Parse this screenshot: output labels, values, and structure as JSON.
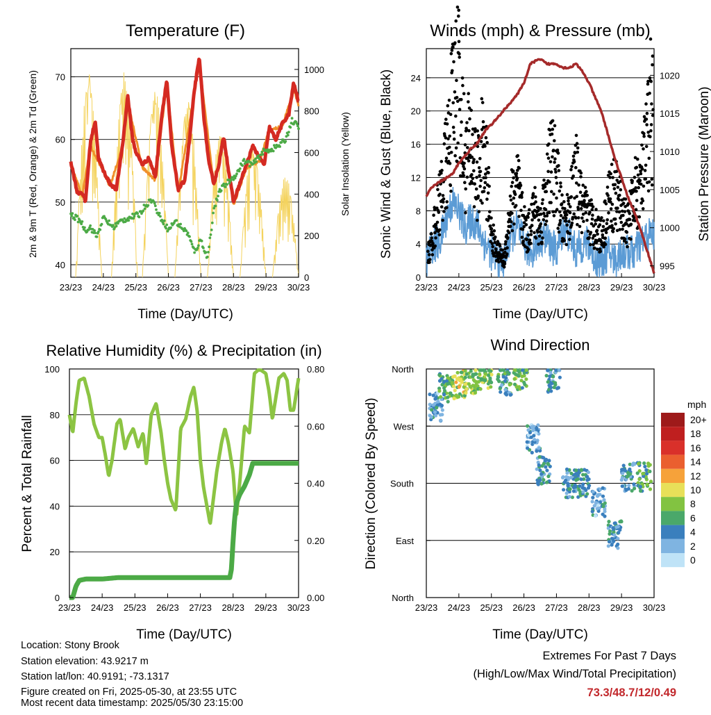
{
  "chart_data": [
    {
      "type": "line",
      "title": "Temperature (F)",
      "xlabel": "Time (Day/UTC)",
      "ylabel": "2m & 9m T (Red, Orange) & 2m Td (Green)",
      "y2label": "Solar Insolation (Yellow)",
      "x_ticks": [
        "23/23",
        "24/23",
        "25/23",
        "26/23",
        "27/23",
        "28/23",
        "29/23",
        "30/23"
      ],
      "xlim": [
        0,
        7
      ],
      "ylim": [
        38,
        74.5
      ],
      "y_ticks": [
        40,
        50,
        60,
        70
      ],
      "y2lim": [
        0,
        1100
      ],
      "y2_ticks": [
        0,
        200,
        400,
        600,
        800,
        1000
      ],
      "grid": true,
      "series": [
        {
          "color": "#d42a22",
          "x": [
            0,
            0.1,
            0.2,
            0.35,
            0.45,
            0.6,
            0.75,
            0.85,
            1.0,
            1.2,
            1.4,
            1.6,
            1.75,
            1.9,
            2.0,
            2.2,
            2.4,
            2.6,
            2.8,
            2.95,
            3.1,
            3.3,
            3.5,
            3.65,
            3.8,
            3.95,
            4.1,
            4.25,
            4.4,
            4.55,
            4.7,
            4.85,
            5.0,
            5.2,
            5.4,
            5.6,
            5.8,
            5.95,
            6.1,
            6.3,
            6.5,
            6.7,
            6.85,
            7.0
          ],
          "y": [
            56.5,
            54,
            51.5,
            51.5,
            50,
            59.5,
            63,
            57,
            55,
            53,
            52,
            59.5,
            67,
            60,
            58,
            56,
            57,
            54,
            64,
            69.5,
            59,
            52,
            53.5,
            60,
            68,
            73,
            63,
            56,
            53,
            56,
            60.5,
            55,
            50,
            53,
            56,
            59,
            57,
            56,
            62,
            60,
            62.5,
            64,
            69,
            66
          ]
        },
        {
          "color": "#f0902a",
          "x": [
            0,
            0.35,
            0.6,
            0.85,
            1.2,
            1.6,
            1.75,
            2.2,
            2.6,
            2.95,
            3.3,
            3.8,
            3.95,
            4.4,
            4.7,
            5.0,
            5.4,
            5.8,
            6.1,
            6.5,
            6.85,
            7.0
          ],
          "y": [
            56,
            51,
            59,
            56.5,
            52.5,
            59,
            66,
            55.5,
            53.5,
            69,
            51.5,
            67.5,
            72.5,
            52.5,
            60,
            49.5,
            55.5,
            56.5,
            61.5,
            62,
            68,
            65.5
          ]
        },
        {
          "color": "#4caa46",
          "x": [
            0,
            0.3,
            0.45,
            0.6,
            0.8,
            1.0,
            1.3,
            1.55,
            1.8,
            2.1,
            2.3,
            2.5,
            2.7,
            2.9,
            3.0,
            3.2,
            3.4,
            3.6,
            3.8,
            4.0,
            4.2,
            4.4,
            4.6,
            4.9,
            5.1,
            5.3,
            5.6,
            5.9,
            6.2,
            6.4,
            6.6,
            6.8,
            7.0
          ],
          "y": [
            48,
            47,
            45.5,
            46,
            44.5,
            47.5,
            46,
            47,
            47.5,
            48,
            49.5,
            50.5,
            48,
            46.5,
            45.5,
            47,
            46,
            45,
            42,
            44,
            41,
            49,
            52,
            53.5,
            54.5,
            56.5,
            56,
            58,
            58.5,
            59,
            60,
            63,
            62
          ]
        }
      ],
      "solar_peaks": [
        {
          "x": 0.55,
          "v": 980
        },
        {
          "x": 1.65,
          "v": 1010
        },
        {
          "x": 2.6,
          "v": 920
        },
        {
          "x": 3.6,
          "v": 880
        },
        {
          "x": 4.6,
          "v": 720
        },
        {
          "x": 5.6,
          "v": 650
        },
        {
          "x": 6.6,
          "v": 500
        }
      ]
    },
    {
      "type": "scatter",
      "title": "Winds (mph) & Pressure (mb)",
      "xlabel": "Time (Day/UTC)",
      "ylabel": "Sonic Wind & Gust (Blue, Black)",
      "y2label": "Station Pressure (Maroon)",
      "x_ticks": [
        "23/23",
        "24/23",
        "25/23",
        "26/23",
        "27/23",
        "28/23",
        "29/23",
        "30/23"
      ],
      "xlim": [
        0,
        7
      ],
      "ylim": [
        0,
        27.5
      ],
      "y_ticks": [
        0,
        4,
        8,
        12,
        16,
        20,
        24
      ],
      "y2lim": [
        993.5,
        1023.5
      ],
      "y2_ticks": [
        995,
        1000,
        1005,
        1010,
        1015,
        1020
      ],
      "grid": true,
      "pressure": {
        "color": "#a52a2a",
        "x": [
          0,
          0.1,
          0.25,
          0.4,
          0.6,
          0.8,
          1.0,
          1.2,
          1.4,
          1.55,
          1.7,
          1.85,
          2.0,
          2.3,
          2.6,
          2.8,
          3.0,
          3.2,
          3.4,
          3.55,
          3.7,
          3.85,
          4.0,
          4.2,
          4.4,
          4.6,
          4.8,
          5.0,
          5.2,
          5.4,
          5.6,
          5.8,
          6.0,
          6.2,
          6.4,
          6.6,
          6.75,
          6.9,
          7.0
        ],
        "y": [
          1004,
          1005,
          1005.5,
          1006,
          1006.5,
          1007,
          1008.5,
          1009.5,
          1010.5,
          1011,
          1012,
          1013,
          1013.5,
          1015,
          1016.5,
          1017.5,
          1019,
          1021.5,
          1022,
          1022,
          1021.5,
          1021.5,
          1021.5,
          1021,
          1021,
          1021.5,
          1020.5,
          1019,
          1017,
          1015,
          1012,
          1009,
          1006.5,
          1004,
          1002,
          999.5,
          997.5,
          995.5,
          994
        ]
      },
      "wind_series": [
        {
          "name": "wind",
          "color": "#5b9bd5",
          "x": [
            0,
            0.2,
            0.4,
            0.6,
            0.8,
            1.0,
            1.2,
            1.4,
            1.6,
            1.8,
            2.0,
            2.2,
            2.4,
            2.6,
            2.8,
            3.0,
            3.2,
            3.4,
            3.6,
            3.8,
            4.0,
            4.2,
            4.4,
            4.6,
            4.8,
            5.0,
            5.2,
            5.4,
            5.6,
            5.8,
            6.0,
            6.2,
            6.4,
            6.6,
            6.8,
            7.0
          ],
          "y": [
            2,
            4,
            4,
            7,
            9,
            8,
            6,
            7,
            6,
            4,
            3,
            2,
            2,
            5,
            6,
            4,
            3,
            4,
            5,
            4,
            3,
            6,
            5,
            3,
            4,
            4,
            2,
            2,
            3,
            2,
            3,
            3,
            3,
            4,
            5,
            5
          ]
        },
        {
          "name": "gust",
          "color": "#000000",
          "x": [
            0.1,
            0.3,
            0.5,
            0.7,
            0.8,
            0.9,
            1.0,
            1.1,
            1.2,
            1.35,
            1.5,
            1.6,
            1.7,
            1.85,
            2.0,
            2.2,
            2.4,
            2.6,
            2.8,
            2.95,
            3.1,
            3.3,
            3.5,
            3.7,
            3.85,
            4.0,
            4.2,
            4.4,
            4.6,
            4.8,
            5.0,
            5.2,
            5.4,
            5.6,
            5.8,
            6.0,
            6.2,
            6.4,
            6.6,
            6.8,
            6.9,
            7.0
          ],
          "y": [
            3,
            7,
            11,
            16,
            20,
            23,
            25,
            18,
            14,
            16,
            13,
            12,
            15,
            13,
            5,
            3,
            2,
            9,
            11,
            7,
            5,
            8,
            6,
            11,
            14,
            12,
            6,
            8,
            12,
            8,
            7,
            6,
            5,
            9,
            10,
            8,
            6,
            10,
            11,
            16,
            21,
            18
          ]
        }
      ]
    },
    {
      "type": "line",
      "title": "Relative Humidity (%) & Precipitation (in)",
      "xlabel": "Time (Day/UTC)",
      "ylabel": "Percent & Total Rainfall",
      "x_ticks": [
        "23/23",
        "24/23",
        "25/23",
        "26/23",
        "27/23",
        "28/23",
        "29/23",
        "30/23"
      ],
      "xlim": [
        0,
        7
      ],
      "ylim": [
        0,
        100
      ],
      "y_ticks": [
        0,
        20,
        40,
        60,
        80,
        100
      ],
      "y2lim": [
        0,
        0.8
      ],
      "y2_ticks": [
        "0.00",
        "0.20",
        "0.40",
        "0.60",
        "0.80"
      ],
      "grid": true,
      "series": [
        {
          "name": "rh",
          "color": "#8cc443",
          "x": [
            0,
            0.1,
            0.2,
            0.3,
            0.45,
            0.6,
            0.75,
            0.9,
            1.0,
            1.1,
            1.2,
            1.3,
            1.45,
            1.55,
            1.7,
            1.8,
            1.95,
            2.1,
            2.25,
            2.35,
            2.5,
            2.65,
            2.8,
            2.9,
            3.0,
            3.1,
            3.25,
            3.4,
            3.55,
            3.7,
            3.8,
            3.9,
            4.0,
            4.1,
            4.3,
            4.5,
            4.65,
            4.75,
            4.85,
            5.0,
            5.1,
            5.2,
            5.35,
            5.5,
            5.65,
            5.8,
            5.9,
            6.0,
            6.1,
            6.2,
            6.4,
            6.55,
            6.65,
            6.75,
            6.85,
            7.0
          ],
          "y": [
            80,
            72,
            85,
            95,
            96,
            88,
            76,
            70,
            70,
            62,
            53,
            60,
            76,
            78,
            65,
            70,
            74,
            66,
            72,
            58,
            80,
            85,
            72,
            60,
            50,
            43,
            38,
            74,
            78,
            88,
            92,
            82,
            60,
            48,
            32,
            55,
            68,
            74,
            68,
            55,
            35,
            50,
            75,
            72,
            98,
            100,
            99,
            98,
            90,
            78,
            96,
            98,
            95,
            82,
            82,
            96
          ]
        },
        {
          "name": "precip",
          "color": "#4caa46",
          "x": [
            0,
            0.1,
            0.15,
            0.2,
            0.3,
            0.5,
            1.0,
            1.5,
            2.0,
            3.0,
            4.0,
            4.5,
            4.8,
            4.9,
            4.95,
            5.0,
            5.05,
            5.1,
            5.2,
            5.35,
            5.5,
            5.6,
            5.8,
            6.0,
            6.5,
            7.0
          ],
          "y": [
            0,
            0,
            0.02,
            0.04,
            0.06,
            0.065,
            0.065,
            0.07,
            0.07,
            0.07,
            0.07,
            0.07,
            0.07,
            0.07,
            0.1,
            0.2,
            0.28,
            0.33,
            0.36,
            0.39,
            0.43,
            0.47,
            0.47,
            0.47,
            0.47,
            0.47
          ]
        }
      ]
    },
    {
      "type": "scatter",
      "title": "Wind Direction",
      "xlabel": "Time (Day/UTC)",
      "ylabel": "Direction (Colored By Speed)",
      "x_ticks": [
        "23/23",
        "24/23",
        "25/23",
        "26/23",
        "27/23",
        "28/23",
        "29/23",
        "30/23"
      ],
      "xlim": [
        0,
        7
      ],
      "y_ticks": [
        "North",
        "West",
        "South",
        "East",
        "North"
      ],
      "grid": true,
      "legend": {
        "title": "mph",
        "labels": [
          "20+",
          "18",
          "16",
          "14",
          "12",
          "10",
          "8",
          "6",
          "4",
          "2",
          "0"
        ],
        "colors": [
          "#9e1a1a",
          "#bf1f1f",
          "#d9302a",
          "#ea5f2f",
          "#f6a23a",
          "#e8e059",
          "#82c341",
          "#4aa86a",
          "#3a7fbd",
          "#7fb4e1",
          "#bfe3f7"
        ]
      },
      "clusters": [
        {
          "x": 0.3,
          "dir": 300,
          "spd": 3
        },
        {
          "x": 0.6,
          "dir": 330,
          "spd": 6
        },
        {
          "x": 1.0,
          "dir": 335,
          "spd": 9
        },
        {
          "x": 1.4,
          "dir": 340,
          "spd": 8
        },
        {
          "x": 1.8,
          "dir": 345,
          "spd": 8
        },
        {
          "x": 2.4,
          "dir": 340,
          "spd": 5
        },
        {
          "x": 2.9,
          "dir": 350,
          "spd": 7
        },
        {
          "x": 3.3,
          "dir": 250,
          "spd": 3
        },
        {
          "x": 3.6,
          "dir": 200,
          "spd": 4
        },
        {
          "x": 3.9,
          "dir": 345,
          "spd": 4
        },
        {
          "x": 4.4,
          "dir": 180,
          "spd": 4
        },
        {
          "x": 4.8,
          "dir": 180,
          "spd": 5
        },
        {
          "x": 5.3,
          "dir": 150,
          "spd": 3
        },
        {
          "x": 5.8,
          "dir": 100,
          "spd": 4
        },
        {
          "x": 6.2,
          "dir": 190,
          "spd": 4
        },
        {
          "x": 6.7,
          "dir": 190,
          "spd": 6
        }
      ]
    }
  ],
  "info": {
    "location": "Location: Stony Brook",
    "elevation": "Station elevation: 43.9217 m",
    "latlon": "Station lat/lon: 40.9191; -73.1317",
    "created": "Figure created on Fri, 2025-05-30, at 23:55 UTC",
    "recent": "Most recent data timestamp: 2025/05/30 23:15:00"
  },
  "extremes": {
    "title": "Extremes For Past 7 Days",
    "subtitle": "(High/Low/Max Wind/Total Precipitation)",
    "values": "73.3/48.7/12/0.49"
  },
  "colors": {
    "accent": "#c2282c"
  }
}
